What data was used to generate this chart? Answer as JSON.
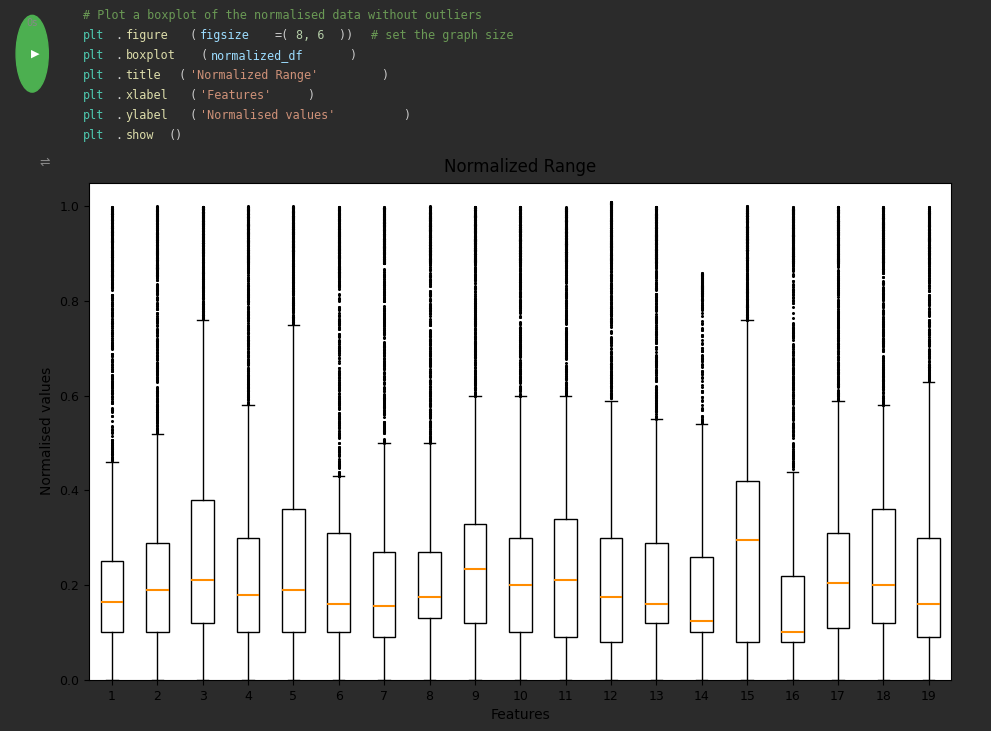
{
  "title": "Normalized Range",
  "xlabel": "Features",
  "ylabel": "Normalised values",
  "n_features": 19,
  "background_color": "#ffffff",
  "plot_bg": "#ffffff",
  "outer_bg": "#2b2b2b",
  "notebook_bg": "#2b2b2b",
  "cell_bg": "#2b2b2b",
  "code_lines": [
    "# Plot a boxplot of the normalised data without outliers",
    "plt.figure(figsize=(8, 6)) # set the graph size",
    "plt.boxplot(normalized_df)",
    "plt.title('Normalized Range')",
    "plt.xlabel('Features')",
    "plt.ylabel('Normalised values')",
    "plt.show()"
  ],
  "box_stats": [
    {
      "q1": 0.1,
      "median": 0.165,
      "q3": 0.25,
      "whislo": 0.0,
      "whishi": 0.46
    },
    {
      "q1": 0.1,
      "median": 0.19,
      "q3": 0.29,
      "whislo": 0.0,
      "whishi": 0.52
    },
    {
      "q1": 0.12,
      "median": 0.21,
      "q3": 0.38,
      "whislo": 0.0,
      "whishi": 0.76
    },
    {
      "q1": 0.1,
      "median": 0.18,
      "q3": 0.3,
      "whislo": 0.0,
      "whishi": 0.58
    },
    {
      "q1": 0.1,
      "median": 0.19,
      "q3": 0.36,
      "whislo": 0.0,
      "whishi": 0.75
    },
    {
      "q1": 0.1,
      "median": 0.16,
      "q3": 0.31,
      "whislo": 0.0,
      "whishi": 0.43
    },
    {
      "q1": 0.09,
      "median": 0.155,
      "q3": 0.27,
      "whislo": 0.0,
      "whishi": 0.5
    },
    {
      "q1": 0.13,
      "median": 0.175,
      "q3": 0.27,
      "whislo": 0.0,
      "whishi": 0.5
    },
    {
      "q1": 0.12,
      "median": 0.235,
      "q3": 0.33,
      "whislo": 0.0,
      "whishi": 0.6
    },
    {
      "q1": 0.1,
      "median": 0.2,
      "q3": 0.3,
      "whislo": 0.0,
      "whishi": 0.6
    },
    {
      "q1": 0.09,
      "median": 0.21,
      "q3": 0.34,
      "whislo": 0.0,
      "whishi": 0.6
    },
    {
      "q1": 0.08,
      "median": 0.175,
      "q3": 0.3,
      "whislo": 0.0,
      "whishi": 0.59
    },
    {
      "q1": 0.12,
      "median": 0.16,
      "q3": 0.29,
      "whislo": 0.0,
      "whishi": 0.55
    },
    {
      "q1": 0.1,
      "median": 0.125,
      "q3": 0.26,
      "whislo": 0.0,
      "whishi": 0.54
    },
    {
      "q1": 0.08,
      "median": 0.295,
      "q3": 0.42,
      "whislo": 0.0,
      "whishi": 0.76
    },
    {
      "q1": 0.08,
      "median": 0.1,
      "q3": 0.22,
      "whislo": 0.0,
      "whishi": 0.44
    },
    {
      "q1": 0.11,
      "median": 0.205,
      "q3": 0.31,
      "whislo": 0.0,
      "whishi": 0.59
    },
    {
      "q1": 0.12,
      "median": 0.2,
      "q3": 0.36,
      "whislo": 0.0,
      "whishi": 0.58
    },
    {
      "q1": 0.09,
      "median": 0.16,
      "q3": 0.3,
      "whislo": 0.0,
      "whishi": 0.63
    }
  ],
  "flier_data": [
    {
      "min": 0.46,
      "max": 1.0,
      "n": 500,
      "dense_above": 0.85
    },
    {
      "min": 0.52,
      "max": 1.0,
      "n": 500,
      "dense_above": 0.85
    },
    {
      "min": 0.76,
      "max": 1.0,
      "n": 400,
      "dense_above": 0.9
    },
    {
      "min": 0.58,
      "max": 1.0,
      "n": 500,
      "dense_above": 0.88
    },
    {
      "min": 0.75,
      "max": 1.0,
      "n": 400,
      "dense_above": 0.9
    },
    {
      "min": 0.43,
      "max": 1.0,
      "n": 500,
      "dense_above": 0.85
    },
    {
      "min": 0.5,
      "max": 1.0,
      "n": 500,
      "dense_above": 0.88
    },
    {
      "min": 0.5,
      "max": 1.0,
      "n": 500,
      "dense_above": 0.88
    },
    {
      "min": 0.6,
      "max": 1.0,
      "n": 500,
      "dense_above": 0.88
    },
    {
      "min": 0.6,
      "max": 1.0,
      "n": 500,
      "dense_above": 0.88
    },
    {
      "min": 0.6,
      "max": 1.0,
      "n": 500,
      "dense_above": 0.88
    },
    {
      "min": 0.59,
      "max": 1.01,
      "n": 500,
      "dense_above": 0.88
    },
    {
      "min": 0.55,
      "max": 1.0,
      "n": 500,
      "dense_above": 0.88
    },
    {
      "min": 0.54,
      "max": 0.86,
      "n": 200,
      "dense_above": 0.8
    },
    {
      "min": 0.76,
      "max": 1.0,
      "n": 500,
      "dense_above": 0.9
    },
    {
      "min": 0.44,
      "max": 1.0,
      "n": 500,
      "dense_above": 0.88
    },
    {
      "min": 0.59,
      "max": 1.0,
      "n": 500,
      "dense_above": 0.88
    },
    {
      "min": 0.58,
      "max": 1.0,
      "n": 500,
      "dense_above": 0.88
    },
    {
      "min": 0.63,
      "max": 1.0,
      "n": 400,
      "dense_above": 0.88
    }
  ],
  "median_color": "#ff8c00",
  "box_facecolor": "#ffffff",
  "box_edgecolor": "#000000",
  "whisker_color": "#000000",
  "cap_color": "#000000",
  "flier_color": "#000000",
  "figsize": [
    9.91,
    7.31
  ],
  "ylim": [
    0.0,
    1.05
  ]
}
